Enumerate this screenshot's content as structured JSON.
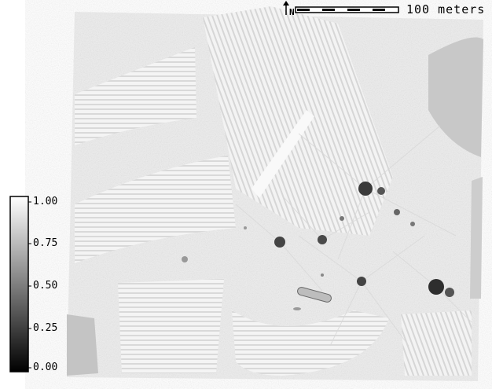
{
  "map": {
    "north_arrow_label": "N",
    "scale_bar_label": "100 meters",
    "legend": {
      "ticks": [
        {
          "label": "1.00",
          "value": 1.0
        },
        {
          "label": "0.75",
          "value": 0.75
        },
        {
          "label": "0.50",
          "value": 0.5
        },
        {
          "label": "0.25",
          "value": 0.25
        },
        {
          "label": "0.00",
          "value": 0.0
        }
      ],
      "color_low": "#000000",
      "color_high": "#ffffff"
    }
  }
}
